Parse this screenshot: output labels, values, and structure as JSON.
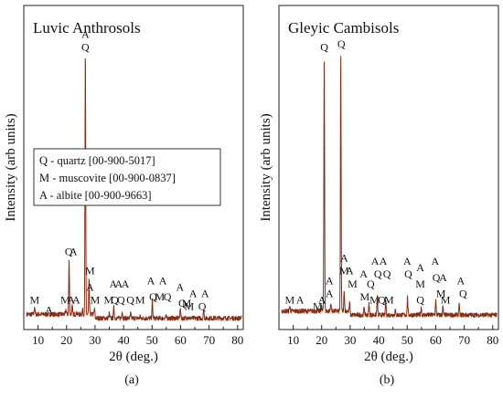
{
  "colors": {
    "pattern": "#8b2c14",
    "frame": "#222222"
  },
  "chart_data": [
    {
      "type": "line",
      "title": "Luvic Anthrosols",
      "xlabel": "2θ (deg.)",
      "ylabel": "Intensity (arb units)",
      "xlim": [
        5,
        82
      ],
      "ylim": [
        0,
        100
      ],
      "xticks": [
        10,
        20,
        30,
        40,
        50,
        60,
        70,
        80
      ],
      "caption": "(a)",
      "legend": [
        "Q - quartz [00-900-5017]",
        "M - muscovite [00-900-0837]",
        "A - albite [00-900-9663]"
      ],
      "series": [
        {
          "baseline": 3.5,
          "peaks": [
            {
              "x": 8.8,
              "y": 6
            },
            {
              "x": 19.8,
              "y": 5
            },
            {
              "x": 20.9,
              "y": 20
            },
            {
              "x": 22.0,
              "y": 6
            },
            {
              "x": 23.5,
              "y": 4
            },
            {
              "x": 25.6,
              "y": 5
            },
            {
              "x": 26.6,
              "y": 86
            },
            {
              "x": 27.9,
              "y": 14
            },
            {
              "x": 29.8,
              "y": 5
            },
            {
              "x": 35.0,
              "y": 5
            },
            {
              "x": 36.6,
              "y": 7
            },
            {
              "x": 39.5,
              "y": 6
            },
            {
              "x": 42.5,
              "y": 5
            },
            {
              "x": 45.8,
              "y": 4
            },
            {
              "x": 50.1,
              "y": 9
            },
            {
              "x": 54.9,
              "y": 4
            },
            {
              "x": 59.9,
              "y": 7
            },
            {
              "x": 62.5,
              "y": 4
            },
            {
              "x": 68.1,
              "y": 6
            }
          ]
        }
      ],
      "annotations": [
        {
          "x": 8.8,
          "y": 8,
          "text": "M"
        },
        {
          "x": 13.8,
          "y": 5,
          "text": "A"
        },
        {
          "x": 19.6,
          "y": 8,
          "text": "M"
        },
        {
          "x": 21.6,
          "y": 8,
          "text": "A"
        },
        {
          "x": 23.4,
          "y": 8,
          "text": "A"
        },
        {
          "x": 20.8,
          "y": 23,
          "text": "Q"
        },
        {
          "x": 22.4,
          "y": 23,
          "text": "A"
        },
        {
          "x": 26.6,
          "y": 90,
          "text": "A"
        },
        {
          "x": 26.6,
          "y": 86,
          "text": "Q"
        },
        {
          "x": 28.2,
          "y": 17,
          "text": "M"
        },
        {
          "x": 28.2,
          "y": 12,
          "text": "A"
        },
        {
          "x": 30.0,
          "y": 8,
          "text": "M"
        },
        {
          "x": 34.8,
          "y": 8,
          "text": "M"
        },
        {
          "x": 36.4,
          "y": 13,
          "text": "A"
        },
        {
          "x": 36.9,
          "y": 8,
          "text": "Q"
        },
        {
          "x": 38.3,
          "y": 13,
          "text": "A"
        },
        {
          "x": 39.1,
          "y": 8,
          "text": "Q"
        },
        {
          "x": 40.6,
          "y": 13,
          "text": "A"
        },
        {
          "x": 42.4,
          "y": 8,
          "text": "Q"
        },
        {
          "x": 45.8,
          "y": 8,
          "text": "M"
        },
        {
          "x": 49.6,
          "y": 14,
          "text": "A"
        },
        {
          "x": 50.4,
          "y": 9,
          "text": "Q"
        },
        {
          "x": 53.8,
          "y": 14,
          "text": "A"
        },
        {
          "x": 52.7,
          "y": 9,
          "text": "M"
        },
        {
          "x": 55.4,
          "y": 9,
          "text": "Q"
        },
        {
          "x": 59.8,
          "y": 12,
          "text": "A"
        },
        {
          "x": 60.6,
          "y": 7,
          "text": "Q"
        },
        {
          "x": 62.1,
          "y": 7,
          "text": "M"
        },
        {
          "x": 64.4,
          "y": 10,
          "text": "A"
        },
        {
          "x": 63.0,
          "y": 6,
          "text": "M"
        },
        {
          "x": 68.6,
          "y": 10,
          "text": "A"
        },
        {
          "x": 67.6,
          "y": 6,
          "text": "Q"
        }
      ]
    },
    {
      "type": "line",
      "title": "Gleyic Cambisols",
      "xlabel": "2θ (deg.)",
      "ylabel": "Intensity (arb units)",
      "xlim": [
        5,
        82
      ],
      "ylim": [
        0,
        100
      ],
      "xticks": [
        10,
        20,
        30,
        40,
        50,
        60,
        70,
        80
      ],
      "caption": "(b)",
      "series": [
        {
          "baseline": 4.5,
          "peaks": [
            {
              "x": 8.8,
              "y": 6
            },
            {
              "x": 19.9,
              "y": 6
            },
            {
              "x": 20.9,
              "y": 83
            },
            {
              "x": 23.2,
              "y": 7
            },
            {
              "x": 26.7,
              "y": 84
            },
            {
              "x": 27.9,
              "y": 11
            },
            {
              "x": 29.8,
              "y": 7
            },
            {
              "x": 34.9,
              "y": 7
            },
            {
              "x": 36.6,
              "y": 8
            },
            {
              "x": 39.5,
              "y": 10
            },
            {
              "x": 42.5,
              "y": 9
            },
            {
              "x": 45.8,
              "y": 6
            },
            {
              "x": 50.1,
              "y": 10
            },
            {
              "x": 54.9,
              "y": 7
            },
            {
              "x": 60.0,
              "y": 9
            },
            {
              "x": 62.5,
              "y": 7
            },
            {
              "x": 68.2,
              "y": 8
            }
          ]
        }
      ],
      "annotations": [
        {
          "x": 8.8,
          "y": 8,
          "text": "M"
        },
        {
          "x": 12.4,
          "y": 8,
          "text": "A"
        },
        {
          "x": 18.6,
          "y": 6,
          "text": "M"
        },
        {
          "x": 20.1,
          "y": 8,
          "text": "A"
        },
        {
          "x": 20.9,
          "y": 86,
          "text": "Q"
        },
        {
          "x": 22.7,
          "y": 10,
          "text": "A"
        },
        {
          "x": 22.7,
          "y": 14,
          "text": "A"
        },
        {
          "x": 26.9,
          "y": 87,
          "text": "Q"
        },
        {
          "x": 27.9,
          "y": 21,
          "text": "A"
        },
        {
          "x": 27.9,
          "y": 17,
          "text": "M"
        },
        {
          "x": 29.8,
          "y": 17,
          "text": "A"
        },
        {
          "x": 30.8,
          "y": 13,
          "text": "M"
        },
        {
          "x": 34.7,
          "y": 16,
          "text": "A"
        },
        {
          "x": 35.1,
          "y": 9,
          "text": "M"
        },
        {
          "x": 37.2,
          "y": 13,
          "text": "Q"
        },
        {
          "x": 38.7,
          "y": 20,
          "text": "A"
        },
        {
          "x": 38.5,
          "y": 8,
          "text": "M"
        },
        {
          "x": 39.7,
          "y": 16,
          "text": "Q"
        },
        {
          "x": 41.6,
          "y": 20,
          "text": "A"
        },
        {
          "x": 41.1,
          "y": 8,
          "text": "Q"
        },
        {
          "x": 42.9,
          "y": 16,
          "text": "Q"
        },
        {
          "x": 43.6,
          "y": 8,
          "text": "M"
        },
        {
          "x": 50.0,
          "y": 20,
          "text": "A"
        },
        {
          "x": 50.4,
          "y": 16,
          "text": "Q"
        },
        {
          "x": 54.6,
          "y": 18,
          "text": "A"
        },
        {
          "x": 54.6,
          "y": 13,
          "text": "M"
        },
        {
          "x": 54.6,
          "y": 8,
          "text": "Q"
        },
        {
          "x": 59.8,
          "y": 20,
          "text": "A"
        },
        {
          "x": 60.2,
          "y": 15,
          "text": "Q"
        },
        {
          "x": 61.8,
          "y": 10,
          "text": "M"
        },
        {
          "x": 62.6,
          "y": 15,
          "text": "A"
        },
        {
          "x": 63.4,
          "y": 8,
          "text": "M"
        },
        {
          "x": 68.8,
          "y": 14,
          "text": "A"
        },
        {
          "x": 69.6,
          "y": 10,
          "text": "Q"
        }
      ]
    }
  ]
}
